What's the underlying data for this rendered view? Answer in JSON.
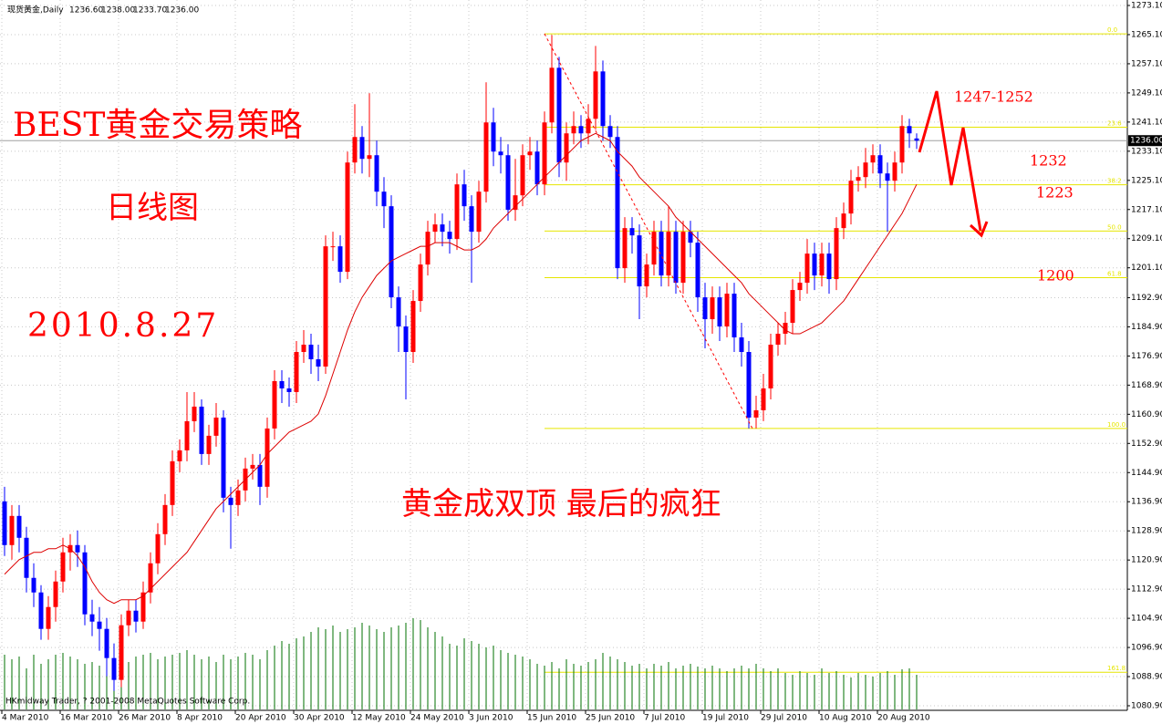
{
  "chart_data": {
    "type": "candlestick",
    "header": {
      "symbol": "现货黄金,Daily",
      "ohlc": [
        "1236.60",
        "1238.00",
        "1233.70",
        "1236.00"
      ]
    },
    "annotations": {
      "title": "BEST黄金交易策略",
      "subtitle": "日线图",
      "date": "2010.8.27",
      "comment": "黄金成双顶 最后的疯狂",
      "target": "1247-1252",
      "level1": "1232",
      "level2": "1223",
      "level3": "1200"
    },
    "copyright": "HKmidway Trader, ? 2001-2008 MetaQuotes Software Corp.",
    "categories": [
      "4 Mar 2010",
      null,
      null,
      null,
      null,
      null,
      null,
      null,
      "16 Mar 2010",
      null,
      null,
      null,
      null,
      null,
      null,
      null,
      "26 Mar 2010",
      null,
      null,
      null,
      null,
      null,
      null,
      null,
      "8 Apr 2010",
      null,
      null,
      null,
      null,
      null,
      null,
      null,
      "20 Apr 2010",
      null,
      null,
      null,
      null,
      null,
      null,
      null,
      "30 Apr 2010",
      null,
      null,
      null,
      null,
      null,
      null,
      null,
      "12 May 2010",
      null,
      null,
      null,
      null,
      null,
      null,
      null,
      "24 May 2010",
      null,
      null,
      null,
      null,
      null,
      null,
      null,
      "3 Jun 2010",
      null,
      null,
      null,
      null,
      null,
      null,
      null,
      "15 Jun 2010",
      null,
      null,
      null,
      null,
      null,
      null,
      null,
      "25 Jun 2010",
      null,
      null,
      null,
      null,
      null,
      null,
      null,
      "7 Jul 2010",
      null,
      null,
      null,
      null,
      null,
      null,
      null,
      "19 Jul 2010",
      null,
      null,
      null,
      null,
      null,
      null,
      null,
      "29 Jul 2010",
      null,
      null,
      null,
      null,
      null,
      null,
      null,
      "10 Aug 2010",
      null,
      null,
      null,
      null,
      null,
      null,
      null,
      "20 Aug 2010",
      null,
      null,
      null,
      null,
      null
    ],
    "open": [
      1137,
      1125,
      1133,
      1127,
      1116,
      1112,
      1102,
      1108,
      1115,
      1123,
      1125,
      1123,
      1106,
      1104,
      1102,
      1094,
      1088,
      1103,
      1107,
      1104,
      1112,
      1120,
      1128,
      1136,
      1148,
      1151,
      1159,
      1163,
      1150,
      1155,
      1160,
      1138,
      1136,
      1140,
      1146,
      1147,
      1141,
      1157,
      1170,
      1168,
      1167,
      1178,
      1180,
      1176,
      1174,
      1207,
      1207,
      1200,
      1230,
      1237,
      1231,
      1232,
      1222,
      1218,
      1193,
      1185,
      1178,
      1192,
      1202,
      1211,
      1213,
      1211,
      1209,
      1224,
      1218,
      1211,
      1222,
      1241,
      1233,
      1232,
      1217,
      1221,
      1232,
      1233,
      1224,
      1241,
      1256,
      1230,
      1238,
      1240,
      1238,
      1242,
      1255,
      1240,
      1237,
      1201,
      1212,
      1210,
      1196,
      1202,
      1211,
      1199,
      1211,
      1197,
      1211,
      1208,
      1193,
      1187,
      1193,
      1185,
      1194,
      1182,
      1178,
      1160,
      1162,
      1168,
      1180,
      1183,
      1186,
      1195,
      1197,
      1205,
      1199,
      1205,
      1198,
      1212,
      1216,
      1225,
      1226,
      1230,
      1232,
      1227,
      1225,
      1230,
      1240,
      1236.6
    ],
    "high": [
      1141,
      1136,
      1136,
      1130,
      1120,
      1114,
      1111,
      1118,
      1127,
      1128,
      1129,
      1125,
      1110,
      1108,
      1105,
      1098,
      1106,
      1110,
      1110,
      1115,
      1123,
      1131,
      1139,
      1151,
      1154,
      1167,
      1167,
      1165,
      1158,
      1164,
      1162,
      1141,
      1143,
      1149,
      1150,
      1150,
      1160,
      1173,
      1173,
      1171,
      1181,
      1184,
      1183,
      1180,
      1210,
      1211,
      1210,
      1233,
      1246,
      1240,
      1249,
      1236,
      1226,
      1221,
      1196,
      1188,
      1195,
      1205,
      1214,
      1216,
      1216,
      1214,
      1227,
      1228,
      1221,
      1225,
      1252,
      1245,
      1237,
      1235,
      1231,
      1235,
      1237,
      1236,
      1244,
      1265,
      1259,
      1241,
      1244,
      1243,
      1246,
      1262,
      1258,
      1243,
      1240,
      1215,
      1215,
      1213,
      1205,
      1214,
      1214,
      1218,
      1214,
      1214,
      1214,
      1211,
      1197,
      1196,
      1196,
      1197,
      1197,
      1186,
      1181,
      1166,
      1172,
      1183,
      1186,
      1189,
      1198,
      1200,
      1209,
      1208,
      1208,
      1208,
      1215,
      1219,
      1228,
      1229,
      1234,
      1235,
      1235,
      1230,
      1233,
      1243,
      1242,
      1238
    ],
    "low": [
      1122,
      1121,
      1123,
      1112,
      1108,
      1099,
      1099,
      1104,
      1112,
      1118,
      1119,
      1103,
      1100,
      1096,
      1089,
      1085,
      1086,
      1100,
      1101,
      1102,
      1109,
      1117,
      1125,
      1133,
      1145,
      1148,
      1156,
      1147,
      1147,
      1152,
      1134,
      1124,
      1133,
      1137,
      1143,
      1136,
      1138,
      1154,
      1164,
      1163,
      1164,
      1175,
      1172,
      1170,
      1172,
      1203,
      1197,
      1198,
      1227,
      1227,
      1226,
      1218,
      1212,
      1190,
      1178,
      1165,
      1175,
      1189,
      1199,
      1208,
      1207,
      1205,
      1206,
      1214,
      1197,
      1208,
      1219,
      1229,
      1227,
      1214,
      1214,
      1218,
      1228,
      1221,
      1221,
      1238,
      1226,
      1225,
      1235,
      1234,
      1235,
      1239,
      1236,
      1234,
      1198,
      1197,
      1205,
      1187,
      1193,
      1199,
      1196,
      1196,
      1194,
      1194,
      1204,
      1189,
      1179,
      1183,
      1181,
      1182,
      1178,
      1174,
      1157,
      1157,
      1159,
      1165,
      1177,
      1180,
      1183,
      1192,
      1194,
      1195,
      1196,
      1194,
      1195,
      1209,
      1213,
      1222,
      1223,
      1227,
      1223,
      1211,
      1222,
      1227,
      1234,
      1233.7
    ],
    "close": [
      1125,
      1133,
      1127,
      1116,
      1112,
      1102,
      1108,
      1115,
      1123,
      1125,
      1123,
      1106,
      1104,
      1102,
      1094,
      1088,
      1103,
      1107,
      1104,
      1112,
      1120,
      1128,
      1136,
      1148,
      1151,
      1159,
      1163,
      1150,
      1155,
      1160,
      1138,
      1136,
      1140,
      1146,
      1147,
      1141,
      1157,
      1170,
      1168,
      1167,
      1178,
      1180,
      1176,
      1174,
      1207,
      1207,
      1200,
      1230,
      1237,
      1231,
      1232,
      1222,
      1218,
      1193,
      1185,
      1178,
      1192,
      1202,
      1211,
      1213,
      1211,
      1209,
      1224,
      1218,
      1211,
      1222,
      1241,
      1233,
      1232,
      1217,
      1221,
      1232,
      1233,
      1224,
      1241,
      1256,
      1230,
      1238,
      1240,
      1238,
      1242,
      1255,
      1240,
      1237,
      1201,
      1212,
      1210,
      1196,
      1202,
      1211,
      1199,
      1211,
      1197,
      1211,
      1208,
      1193,
      1187,
      1193,
      1185,
      1194,
      1182,
      1178,
      1160,
      1162,
      1168,
      1180,
      1183,
      1186,
      1195,
      1197,
      1205,
      1199,
      1205,
      1198,
      1212,
      1216,
      1225,
      1226,
      1230,
      1232,
      1227,
      1225,
      1230,
      1240,
      1238,
      1236
    ],
    "up_color": "#ff0000",
    "down_color": "#0000ff",
    "ma": {
      "color": "#dd0000",
      "values": [
        1117,
        1119,
        1121,
        1122,
        1123,
        1123,
        1124,
        1124,
        1125,
        1124,
        1122,
        1119,
        1115,
        1112,
        1110,
        1109,
        1110,
        1110,
        1110,
        1111,
        1113,
        1115,
        1117,
        1119,
        1121,
        1123,
        1126,
        1129,
        1132,
        1135,
        1137,
        1139,
        1141,
        1143,
        1145,
        1147,
        1150,
        1152,
        1154,
        1156,
        1157,
        1158,
        1159,
        1161,
        1166,
        1172,
        1178,
        1184,
        1189,
        1193,
        1196,
        1199,
        1201,
        1203,
        1204,
        1205,
        1206,
        1207,
        1207,
        1208,
        1208,
        1208,
        1207,
        1206,
        1206,
        1207,
        1209,
        1212,
        1214,
        1216,
        1218,
        1220,
        1222,
        1224,
        1226,
        1228,
        1230,
        1232,
        1234,
        1236,
        1237,
        1238,
        1237,
        1236,
        1233,
        1231,
        1229,
        1226,
        1224,
        1222,
        1220,
        1218,
        1215,
        1213,
        1211,
        1209,
        1207,
        1205,
        1203,
        1201,
        1199,
        1197,
        1194,
        1192,
        1190,
        1188,
        1186,
        1184,
        1183,
        1183,
        1184,
        1185,
        1186,
        1188,
        1190,
        1192,
        1195,
        1198,
        1201,
        1204,
        1207,
        1210,
        1213,
        1216,
        1220,
        1224
      ]
    },
    "volume": {
      "color": "#007000",
      "values": [
        60,
        55,
        58,
        45,
        60,
        50,
        55,
        60,
        62,
        58,
        55,
        50,
        52,
        48,
        50,
        55,
        45,
        52,
        58,
        60,
        62,
        55,
        58,
        60,
        62,
        65,
        60,
        55,
        58,
        52,
        60,
        55,
        58,
        62,
        60,
        55,
        65,
        70,
        75,
        72,
        78,
        80,
        85,
        90,
        88,
        92,
        85,
        88,
        90,
        95,
        92,
        88,
        85,
        90,
        92,
        95,
        100,
        98,
        90,
        85,
        80,
        72,
        70,
        78,
        75,
        72,
        68,
        70,
        65,
        62,
        60,
        58,
        55,
        50,
        48,
        52,
        45,
        55,
        50,
        48,
        52,
        55,
        62,
        58,
        55,
        52,
        48,
        50,
        45,
        50,
        48,
        52,
        45,
        48,
        50,
        47,
        45,
        48,
        45,
        42,
        45,
        48,
        45,
        50,
        45,
        42,
        45,
        40,
        38,
        42,
        40,
        38,
        45,
        40,
        42,
        38,
        35,
        40,
        38,
        36,
        40,
        42,
        38,
        44,
        45,
        38
      ]
    },
    "fib": {
      "color": "#e6e600",
      "levels": [
        {
          "value": 1265.3,
          "label": "0.0"
        },
        {
          "value": 1239.7,
          "label": "23.6"
        },
        {
          "value": 1223.9,
          "label": "38.2"
        },
        {
          "value": 1211.2,
          "label": "50.0"
        },
        {
          "value": 1198.4,
          "label": "61.8"
        },
        {
          "value": 1157.0,
          "label": "100.0"
        },
        {
          "value": 1090.1,
          "label": "161.8"
        }
      ]
    },
    "bid": {
      "value": 1236,
      "label": "1236.00"
    },
    "ylim": [
      1079.9,
      1274.6
    ],
    "yticks": [
      {
        "value": 1273.1,
        "label": "1273.10"
      },
      {
        "value": 1265.1,
        "label": "1265.10"
      },
      {
        "value": 1257.1,
        "label": "1257.10"
      },
      {
        "value": 1249.1,
        "label": "1249.10"
      },
      {
        "value": 1241.1,
        "label": "1241.10"
      },
      {
        "value": 1233.1,
        "label": "1233.10"
      },
      {
        "value": 1225.1,
        "label": "1225.10"
      },
      {
        "value": 1217.1,
        "label": "1217.10"
      },
      {
        "value": 1209.1,
        "label": "1209.10"
      },
      {
        "value": 1201.1,
        "label": "1201.10"
      },
      {
        "value": 1192.9,
        "label": "1192.90"
      },
      {
        "value": 1184.9,
        "label": "1184.90"
      },
      {
        "value": 1176.9,
        "label": "1176.90"
      },
      {
        "value": 1168.9,
        "label": "1168.90"
      },
      {
        "value": 1160.9,
        "label": "1160.90"
      },
      {
        "value": 1152.9,
        "label": "1152.90"
      },
      {
        "value": 1144.9,
        "label": "1144.90"
      },
      {
        "value": 1136.9,
        "label": "1136.90"
      },
      {
        "value": 1128.9,
        "label": "1128.90"
      },
      {
        "value": 1120.9,
        "label": "1120.90"
      },
      {
        "value": 1112.9,
        "label": "1112.90"
      },
      {
        "value": 1104.9,
        "label": "1104.90"
      },
      {
        "value": 1096.9,
        "label": "1096.90"
      },
      {
        "value": 1088.9,
        "label": "1088.90"
      },
      {
        "value": 1080.9,
        "label": "1080.90"
      }
    ],
    "grid": true
  }
}
